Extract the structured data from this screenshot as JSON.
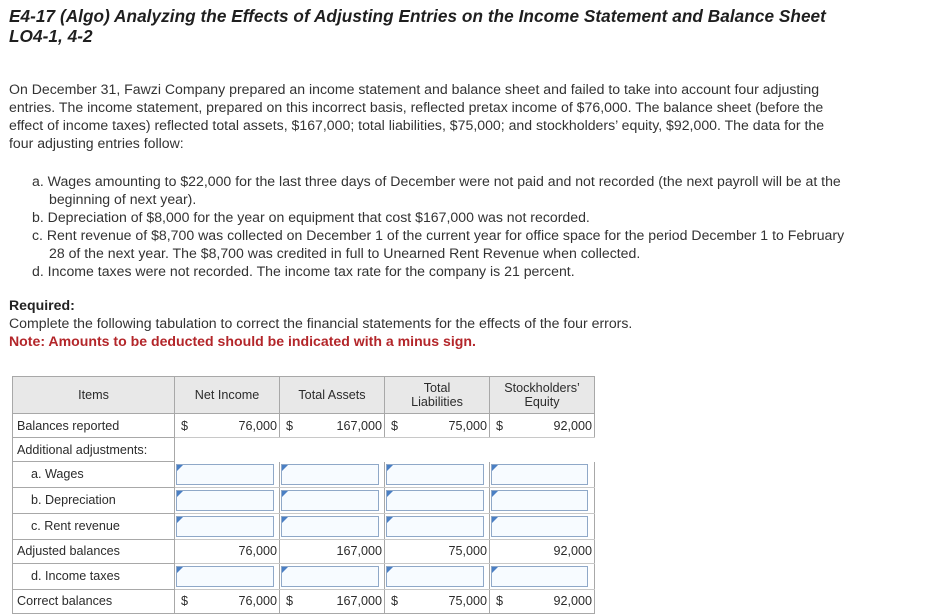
{
  "title": {
    "line1": "E4-17 (Algo) Analyzing the Effects of Adjusting Entries on the Income Statement and Balance Sheet",
    "line2": "LO4-1, 4-2"
  },
  "intro": [
    "On December 31, Fawzi Company prepared an income statement and balance sheet and failed to take into account four adjusting",
    "entries. The income statement, prepared on this incorrect basis, reflected pretax income of $76,000. The balance sheet (before the",
    "effect of income taxes) reflected total assets, $167,000; total liabilities, $75,000; and stockholders’ equity, $92,000. The data for the",
    "four adjusting entries follow:"
  ],
  "entries": {
    "a1": "a. Wages amounting to $22,000 for the last three days of December were not paid and not recorded (the next payroll will be at the",
    "a2": "beginning of next year).",
    "b1": "b. Depreciation of $8,000 for the year on equipment that cost $167,000 was not recorded.",
    "c1": "c. Rent revenue of $8,700 was collected on December 1 of the current year for office space for the period December 1 to February",
    "c2": "28 of the next year. The $8,700 was credited in full to Unearned Rent Revenue when collected.",
    "d1": "d. Income taxes were not recorded. The income tax rate for the company is 21 percent."
  },
  "required": {
    "label": "Required:",
    "text": "Complete the following tabulation to correct the financial statements for the effects of the four errors.",
    "note": "Note: Amounts to be deducted should be indicated with a minus sign."
  },
  "table": {
    "headers": {
      "items": "Items",
      "net_income": "Net Income",
      "total_assets": "Total Assets",
      "total_liabilities_1": "Total",
      "total_liabilities_2": "Liabilities",
      "equity_1": "Stockholders’",
      "equity_2": "Equity"
    },
    "currency": "$",
    "balances_reported": {
      "label": "Balances reported",
      "net_income": "76,000",
      "total_assets": "167,000",
      "total_liabilities": "75,000",
      "equity": "92,000"
    },
    "additional_label": "Additional adjustments:",
    "wages_label": "a. Wages",
    "depreciation_label": "b. Depreciation",
    "rent_label": "c. Rent revenue",
    "adjusted_balances": {
      "label": "Adjusted balances",
      "net_income": "76,000",
      "total_assets": "167,000",
      "total_liabilities": "75,000",
      "equity": "92,000"
    },
    "income_taxes_label": "d. Income taxes",
    "correct_balances": {
      "label": "Correct balances",
      "net_income": "76,000",
      "total_assets": "167,000",
      "total_liabilities": "75,000",
      "equity": "92,000"
    }
  }
}
